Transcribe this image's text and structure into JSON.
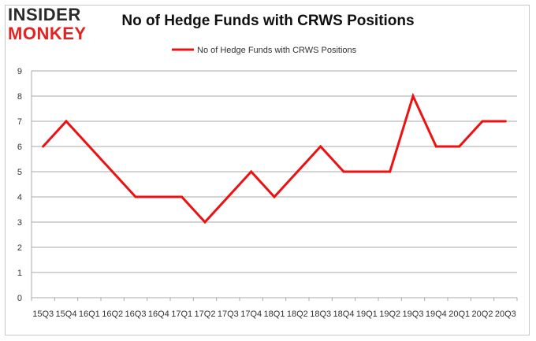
{
  "brand": {
    "logo_line1": "INSIDER",
    "logo_line2": "MONKEY"
  },
  "chart_data": {
    "type": "line",
    "title": "No of Hedge Funds with CRWS Positions",
    "xlabel": "",
    "ylabel": "",
    "categories": [
      "15Q3",
      "15Q4",
      "16Q1",
      "16Q2",
      "16Q3",
      "16Q4",
      "17Q1",
      "17Q2",
      "17Q3",
      "17Q4",
      "18Q1",
      "18Q2",
      "18Q3",
      "18Q4",
      "19Q1",
      "19Q2",
      "19Q3",
      "19Q4",
      "20Q1",
      "20Q2",
      "20Q3"
    ],
    "series": [
      {
        "name": "No of Hedge Funds with CRWS Positions",
        "color": "#ee1111",
        "values": [
          6,
          7,
          6,
          5,
          4,
          4,
          4,
          3,
          4,
          5,
          4,
          5,
          6,
          5,
          5,
          5,
          8,
          6,
          6,
          7,
          7
        ]
      }
    ],
    "ylim": [
      0,
      9
    ],
    "yticks": [
      0,
      1,
      2,
      3,
      4,
      5,
      6,
      7,
      8,
      9
    ],
    "grid": true,
    "legend": "top-center"
  }
}
